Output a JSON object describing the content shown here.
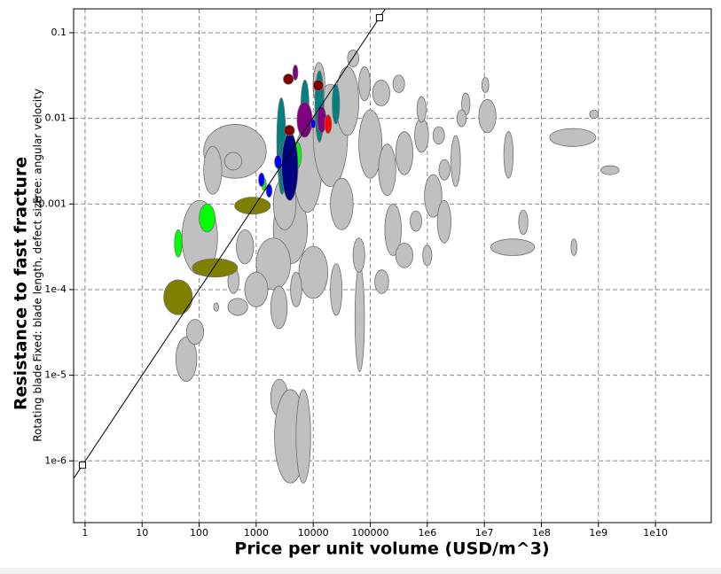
{
  "chart_data": {
    "type": "ellipse",
    "x_label": "Price per unit volume (USD/m^3)",
    "y_label": "Resistance to fast fracture",
    "y_sublabels": [
      "Rotating blade",
      "Fixed: blade length, defect size",
      "Free: angular velocity"
    ],
    "x_scale": "log",
    "y_scale": "log",
    "grid": true,
    "xlim": [
      0.63,
      95000000000
    ],
    "ylim": [
      1.9e-07,
      0.19
    ],
    "xticks": [
      1,
      10,
      100,
      1000,
      10000,
      100000,
      {
        "value": 1000000,
        "label": "1e6"
      },
      {
        "value": 10000000,
        "label": "1e7"
      },
      {
        "value": 100000000,
        "label": "1e8"
      },
      {
        "value": 1000000000,
        "label": "1e9"
      },
      {
        "value": 10000000000,
        "label": "1e10"
      }
    ],
    "yticks": [
      0.1,
      0.01,
      0.001,
      {
        "value": 0.0001,
        "label": "1e-4"
      },
      {
        "value": 1e-05,
        "label": "1e-5"
      },
      {
        "value": 1e-06,
        "label": "1e-6"
      }
    ],
    "series": [
      {
        "color": "#c0c0c0",
        "x": [
          [
            120,
            1500
          ],
          [
            120,
            250
          ],
          [
            50,
            210
          ],
          [
            39,
            91
          ],
          [
            60,
            120
          ],
          [
            1800,
            3600
          ],
          [
            2100,
            7500
          ],
          [
            5000,
            9000
          ],
          [
            54000,
            79000
          ],
          [
            13000000,
            76000000
          ],
          [
            40000000,
            58000000
          ],
          [
            330000000,
            420000000
          ],
          [
            140000000,
            900000000
          ],
          [
            1100000000,
            2300000000
          ],
          [
            700000000,
            1000000000
          ],
          [
            22000000,
            32000000
          ],
          [
            8000000,
            16000000
          ],
          [
            4000000,
            5600000
          ],
          [
            9000000,
            12000000
          ],
          [
            2000,
            7900
          ],
          [
            4500,
            14000
          ],
          [
            10000,
            40000
          ],
          [
            25000,
            63000
          ],
          [
            1000,
            4000
          ],
          [
            630,
            1600
          ],
          [
            320,
            710
          ],
          [
            5600,
            18000
          ],
          [
            20000,
            50000
          ],
          [
            63000,
            160000
          ],
          [
            140000,
            280000
          ],
          [
            280000,
            560000
          ],
          [
            600000,
            1050000
          ],
          [
            890000,
            1800000
          ],
          [
            180000,
            350000
          ],
          [
            280000,
            560000
          ],
          [
            1500000,
            2600000
          ],
          [
            63000,
            100000
          ],
          [
            110000,
            220000
          ],
          [
            250000,
            400000
          ],
          [
            660000,
            950000
          ],
          [
            1260000,
            2000000
          ],
          [
            3300000,
            4800000
          ],
          [
            2000,
            5000
          ],
          [
            450,
            900
          ],
          [
            320,
            500
          ],
          [
            180,
            220
          ],
          [
            1800,
            3500
          ],
          [
            4000,
            6300
          ],
          [
            20000,
            32000
          ],
          [
            50000,
            80000
          ],
          [
            2600000,
            3800000
          ],
          [
            830000,
            1200000
          ],
          [
            10000,
            16000
          ],
          [
            40000,
            63000
          ],
          [
            280,
            560
          ],
          [
            120000,
            210000
          ],
          [
            500000,
            800000
          ],
          [
            1600000,
            2500000
          ]
        ],
        "y": [
          [
            0.002,
            0.0085
          ],
          [
            0.0013,
            0.0047
          ],
          [
            0.00015,
            0.0011
          ],
          [
            8.5e-06,
            2.8e-05
          ],
          [
            2.3e-05,
            4.5e-05
          ],
          [
            3.3e-06,
            9e-06
          ],
          [
            5.5e-07,
            6.8e-06
          ],
          [
            5.5e-07,
            6.8e-06
          ],
          [
            1.1e-05,
            0.00019
          ],
          [
            0.00025,
            0.00039
          ],
          [
            0.00044,
            0.00085
          ],
          [
            0.00025,
            0.00039
          ],
          [
            0.0047,
            0.0076
          ],
          [
            0.0022,
            0.0028
          ],
          [
            0.01,
            0.0125
          ],
          [
            0.002,
            0.007
          ],
          [
            0.0068,
            0.0166
          ],
          [
            0.0109,
            0.0198
          ],
          [
            0.02,
            0.03
          ],
          [
            0.0002,
            0.0013
          ],
          [
            0.0008,
            0.008
          ],
          [
            0.0016,
            0.025
          ],
          [
            0.0063,
            0.04
          ],
          [
            0.0001,
            0.0004
          ],
          [
            6.3e-05,
            0.00016
          ],
          [
            5e-05,
            7.9e-05
          ],
          [
            7.9e-05,
            0.00032
          ],
          [
            0.0005,
            0.002
          ],
          [
            0.002,
            0.0126
          ],
          [
            0.00126,
            0.005
          ],
          [
            0.0022,
            0.007
          ],
          [
            0.004,
            0.01
          ],
          [
            0.0007,
            0.0022
          ],
          [
            0.00025,
            0.001
          ],
          [
            0.00018,
            0.00035
          ],
          [
            0.00035,
            0.0011
          ],
          [
            0.016,
            0.04
          ],
          [
            0.014,
            0.028
          ],
          [
            0.02,
            0.032
          ],
          [
            0.009,
            0.018
          ],
          [
            0.005,
            0.008
          ],
          [
            0.008,
            0.0126
          ],
          [
            0.0005,
            0.002
          ],
          [
            0.0002,
            0.0005
          ],
          [
            9e-05,
            0.00018
          ],
          [
            5.6e-05,
            7e-05
          ],
          [
            3.5e-05,
            0.00011
          ],
          [
            6.3e-05,
            0.00016
          ],
          [
            5e-05,
            0.0002
          ],
          [
            0.00016,
            0.0004
          ],
          [
            0.0016,
            0.0063
          ],
          [
            0.00019,
            0.00033
          ],
          [
            0.014,
            0.045
          ],
          [
            0.04,
            0.063
          ],
          [
            0.0025,
            0.004
          ],
          [
            9e-05,
            0.00017
          ],
          [
            0.00048,
            0.00083
          ],
          [
            0.0019,
            0.0033
          ]
        ]
      },
      {
        "color": "#808000",
        "x": [
          [
            24,
            76
          ],
          [
            76,
            470
          ],
          [
            420,
            1780
          ]
        ],
        "y": [
          [
            5.1e-05,
            0.00013
          ],
          [
            0.00014,
            0.00023
          ],
          [
            0.00076,
            0.0012
          ]
        ]
      },
      {
        "color": "#008080",
        "x": [
          [
            2300,
            3300
          ],
          [
            6100,
            8400
          ],
          [
            10700,
            15400
          ],
          [
            21500,
            29000
          ],
          [
            2450,
            3300
          ]
        ],
        "y": [
          [
            0.0016,
            0.0174
          ],
          [
            0.0076,
            0.028
          ],
          [
            0.0053,
            0.036
          ],
          [
            0.0086,
            0.025
          ],
          [
            0.0013,
            0.0053
          ]
        ]
      },
      {
        "color": "#800080",
        "x": [
          [
            4400,
            5400
          ],
          [
            5200,
            9600
          ],
          [
            11800,
            16800
          ]
        ],
        "y": [
          [
            0.028,
            0.042
          ],
          [
            0.006,
            0.0155
          ],
          [
            0.0068,
            0.0138
          ]
        ]
      },
      {
        "color": "#00ff00",
        "x": [
          [
            100,
            190
          ],
          [
            37,
            50
          ],
          [
            1250,
            1500
          ],
          [
            4400,
            6200
          ]
        ],
        "y": [
          [
            0.00047,
            0.001
          ],
          [
            0.00024,
            0.0005
          ],
          [
            0.00145,
            0.002
          ],
          [
            0.0026,
            0.0053
          ]
        ]
      },
      {
        "color": "#000080",
        "x": [
          [
            2800,
            5400
          ]
        ],
        "y": [
          [
            0.0011,
            0.0068
          ]
        ]
      },
      {
        "color": "#0000ff",
        "x": [
          [
            1100,
            1400
          ],
          [
            1500,
            1900
          ],
          [
            2100,
            2800
          ],
          [
            9000,
            11000
          ]
        ],
        "y": [
          [
            0.0016,
            0.0023
          ],
          [
            0.0012,
            0.0017
          ],
          [
            0.0026,
            0.0037
          ],
          [
            0.0077,
            0.0097
          ]
        ]
      },
      {
        "color": "#800000",
        "x": [
          [
            3000,
            4500
          ],
          [
            10000,
            15000
          ],
          [
            3100,
            4700
          ]
        ],
        "y": [
          [
            0.025,
            0.033
          ],
          [
            0.021,
            0.028
          ],
          [
            0.0063,
            0.0083
          ]
        ]
      },
      {
        "color": "#ff0000",
        "x": [
          [
            15800,
            21000
          ]
        ],
        "y": [
          [
            0.0067,
            0.011
          ]
        ]
      }
    ],
    "guideline": {
      "x": [
        0.9,
        145000
      ],
      "y": [
        8.9e-07,
        0.15
      ]
    }
  }
}
